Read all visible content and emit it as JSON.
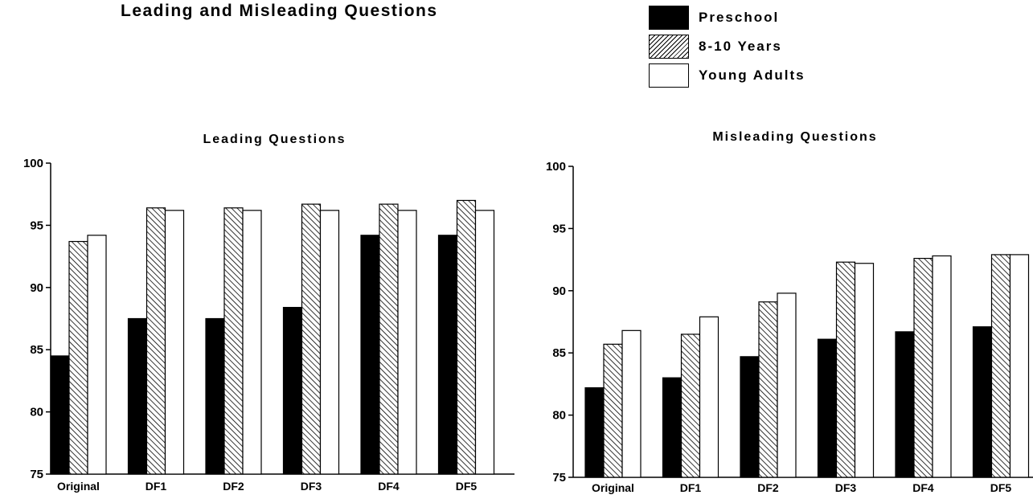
{
  "header": {
    "title": "Leading and Misleading Questions"
  },
  "legend": {
    "items": [
      {
        "label": "Preschool",
        "color": "#000000",
        "pattern": "solid"
      },
      {
        "label": "8-10 Years",
        "color": "#ffffff",
        "pattern": "hatch"
      },
      {
        "label": "Young Adults",
        "color": "#ffffff",
        "pattern": "none"
      }
    ]
  },
  "chart_data": [
    {
      "type": "bar",
      "title": "Leading Questions",
      "xlabel": "",
      "ylabel": "",
      "categories": [
        "Original",
        "DF1",
        "DF2",
        "DF3",
        "DF4",
        "DF5"
      ],
      "series": [
        {
          "name": "Preschool",
          "values": [
            84.5,
            87.5,
            87.5,
            88.4,
            94.2,
            94.2
          ]
        },
        {
          "name": "8-10 Years",
          "values": [
            93.7,
            96.4,
            96.4,
            96.7,
            96.7,
            97.0
          ]
        },
        {
          "name": "Young Adults",
          "values": [
            94.2,
            96.2,
            96.2,
            96.2,
            96.2,
            96.2
          ]
        }
      ],
      "ylim": [
        75,
        100
      ],
      "yticks": [
        75,
        80,
        85,
        90,
        95,
        100
      ],
      "grid": false,
      "legend_position": "top-right"
    },
    {
      "type": "bar",
      "title": "Misleading Questions",
      "xlabel": "",
      "ylabel": "",
      "categories": [
        "Original",
        "DF1",
        "DF2",
        "DF3",
        "DF4",
        "DF5"
      ],
      "series": [
        {
          "name": "Preschool",
          "values": [
            82.2,
            83.0,
            84.7,
            86.1,
            86.7,
            87.1
          ]
        },
        {
          "name": "8-10 Years",
          "values": [
            85.7,
            86.5,
            89.1,
            92.3,
            92.6,
            92.9
          ]
        },
        {
          "name": "Young Adults",
          "values": [
            86.8,
            87.9,
            89.8,
            92.2,
            92.8,
            92.9
          ]
        }
      ],
      "ylim": [
        75,
        100
      ],
      "yticks": [
        75,
        80,
        85,
        90,
        95,
        100
      ],
      "grid": false,
      "legend_position": "top-right"
    }
  ]
}
